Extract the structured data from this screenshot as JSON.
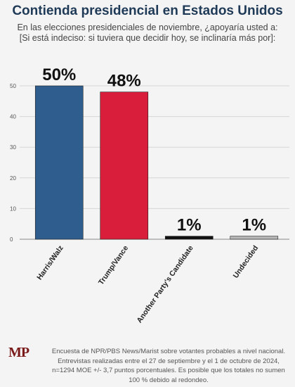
{
  "header": {
    "title": "Contienda presidencial en Estados Unidos",
    "subtitle": "En las elecciones presidenciales de noviembre, ¿apoyaría usted a: [Si está indeciso: si tuviera que decidir hoy, se inclinaría más por]:"
  },
  "chart_data": {
    "type": "bar",
    "categories": [
      "Harris/Walz",
      "Trump/Vance",
      "Another Party's Candidate",
      "Undecided"
    ],
    "values": [
      50,
      48,
      1,
      1
    ],
    "data_labels": [
      "50%",
      "48%",
      "1%",
      "1%"
    ],
    "bar_colors": [
      "#2f5e8e",
      "#d81e3a",
      "#111111",
      "#b5b5b5"
    ],
    "ylim": [
      0,
      50
    ],
    "yticks": [
      0,
      10,
      20,
      30,
      40,
      50
    ],
    "grid": true
  },
  "footer": {
    "logo": "MP",
    "source": "Encuesta de NPR/PBS News/Marist sobre votantes probables a nivel nacional. Entrevistas realizadas entre el 27 de septiembre y el 1 de octubre de 2024, n=1294 MOE +/- 3,7 puntos porcentuales. Es posible que los totales no sumen 100 % debido al redondeo."
  }
}
